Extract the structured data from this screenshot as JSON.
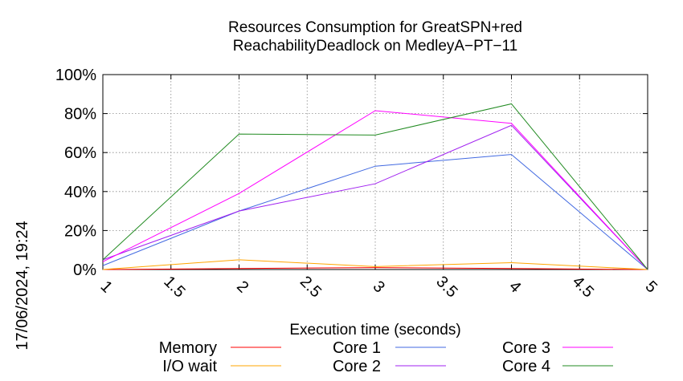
{
  "chart_data": {
    "type": "line",
    "title": [
      "Resources Consumption for GreatSPN+red",
      "ReachabilityDeadlock on MedleyA−PT−11"
    ],
    "xlabel": "Execution time (seconds)",
    "ylabel": "",
    "side_label": "17/06/2024, 19:24",
    "xlim": [
      1,
      5
    ],
    "ylim": [
      0,
      100
    ],
    "x_ticks": [
      1,
      1.5,
      2,
      2.5,
      3,
      3.5,
      4,
      4.5,
      5
    ],
    "x_tick_labels": [
      "1",
      "1.5",
      "2",
      "2.5",
      "3",
      "3.5",
      "4",
      "4.5",
      "5"
    ],
    "y_ticks": [
      0,
      20,
      40,
      60,
      80,
      100
    ],
    "y_tick_labels": [
      "0%",
      "20%",
      "40%",
      "60%",
      "80%",
      "100%"
    ],
    "grid": true,
    "legend_position": "bottom",
    "x": [
      1,
      2,
      3,
      4,
      5
    ],
    "series": [
      {
        "name": "Memory",
        "color": "#ff0000",
        "values": [
          0,
          0.5,
          1,
          0.5,
          0
        ]
      },
      {
        "name": "I/O wait",
        "color": "#ffa500",
        "values": [
          0,
          5,
          1.5,
          3.5,
          0
        ]
      },
      {
        "name": "Core 1",
        "color": "#4169e1",
        "values": [
          2,
          30,
          53,
          59,
          0
        ]
      },
      {
        "name": "Core 2",
        "color": "#a020f0",
        "values": [
          5,
          30,
          44,
          74,
          0
        ]
      },
      {
        "name": "Core 3",
        "color": "#ff00ff",
        "values": [
          4,
          39,
          81.5,
          75,
          0
        ]
      },
      {
        "name": "Core 4",
        "color": "#228b22",
        "values": [
          5,
          69.5,
          69,
          85,
          0
        ]
      }
    ]
  }
}
